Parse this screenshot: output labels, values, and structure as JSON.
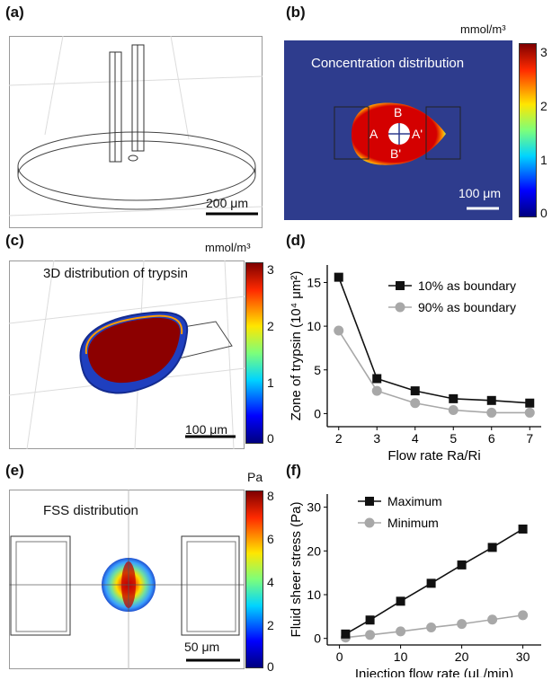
{
  "panels": {
    "a": {
      "label": "(a)",
      "scalebar": "200 μm"
    },
    "b": {
      "label": "(b)",
      "title": "Concentration distribution",
      "unit": "mmol/m³",
      "ticks": [
        "3",
        "2",
        "1",
        "0"
      ],
      "scalebar": "100 μm",
      "points": {
        "A": "A",
        "A2": "A'",
        "B": "B",
        "B2": "B'"
      }
    },
    "c": {
      "label": "(c)",
      "title": "3D distribution of trypsin",
      "unit": "mmol/m³",
      "ticks": [
        "3",
        "2",
        "1",
        "0"
      ],
      "scalebar": "100 μm"
    },
    "d": {
      "label": "(d)"
    },
    "e": {
      "label": "(e)",
      "title": "FSS distribution",
      "unit": "Pa",
      "ticks": [
        "8",
        "6",
        "4",
        "2",
        "0"
      ],
      "scalebar": "50 μm"
    },
    "f": {
      "label": "(f)"
    }
  },
  "colors": {
    "panel_bg_b": "#2e3c8d",
    "black_series": "#111111",
    "gray_series": "#a8a8a8"
  },
  "chart_data": [
    {
      "id": "d",
      "type": "line",
      "xlabel": "Flow rate Ra/Ri",
      "ylabel": "Zone of trypsin (10⁴ μm²)",
      "x": [
        2,
        3,
        4,
        5,
        6,
        7
      ],
      "xlim": [
        1.7,
        7.3
      ],
      "ylim": [
        -1.5,
        17
      ],
      "xticks": [
        "2",
        "3",
        "4",
        "5",
        "6",
        "7"
      ],
      "yticks": [
        "0",
        "5",
        "10",
        "15"
      ],
      "ytick_values": [
        0,
        5,
        10,
        15
      ],
      "series": [
        {
          "name": "10% as boundary",
          "values": [
            15.6,
            4.0,
            2.6,
            1.7,
            1.5,
            1.2
          ],
          "color": "#111111",
          "marker": "square"
        },
        {
          "name": "90% as boundary",
          "values": [
            9.5,
            2.6,
            1.2,
            0.4,
            0.1,
            0.1
          ],
          "color": "#a8a8a8",
          "marker": "circle"
        }
      ],
      "legend": "top-right"
    },
    {
      "id": "f",
      "type": "line",
      "xlabel": "Injection flow rate (μL/min)",
      "ylabel": "Fluid sheer stress (Pa)",
      "x": [
        1,
        5,
        10,
        15,
        20,
        25,
        30
      ],
      "xlim": [
        -2,
        33
      ],
      "ylim": [
        -1.5,
        33
      ],
      "xticks": [
        "0",
        "10",
        "20",
        "30"
      ],
      "xtick_values": [
        0,
        10,
        20,
        30
      ],
      "yticks": [
        "0",
        "10",
        "20",
        "30"
      ],
      "ytick_values": [
        0,
        10,
        20,
        30
      ],
      "series": [
        {
          "name": "Maximum",
          "values": [
            1.0,
            4.2,
            8.5,
            12.6,
            16.8,
            20.8,
            25.0
          ],
          "color": "#111111",
          "marker": "square"
        },
        {
          "name": "Minimum",
          "values": [
            0.2,
            0.8,
            1.6,
            2.5,
            3.3,
            4.3,
            5.3
          ],
          "color": "#a8a8a8",
          "marker": "circle"
        }
      ],
      "legend": "top-left"
    }
  ]
}
